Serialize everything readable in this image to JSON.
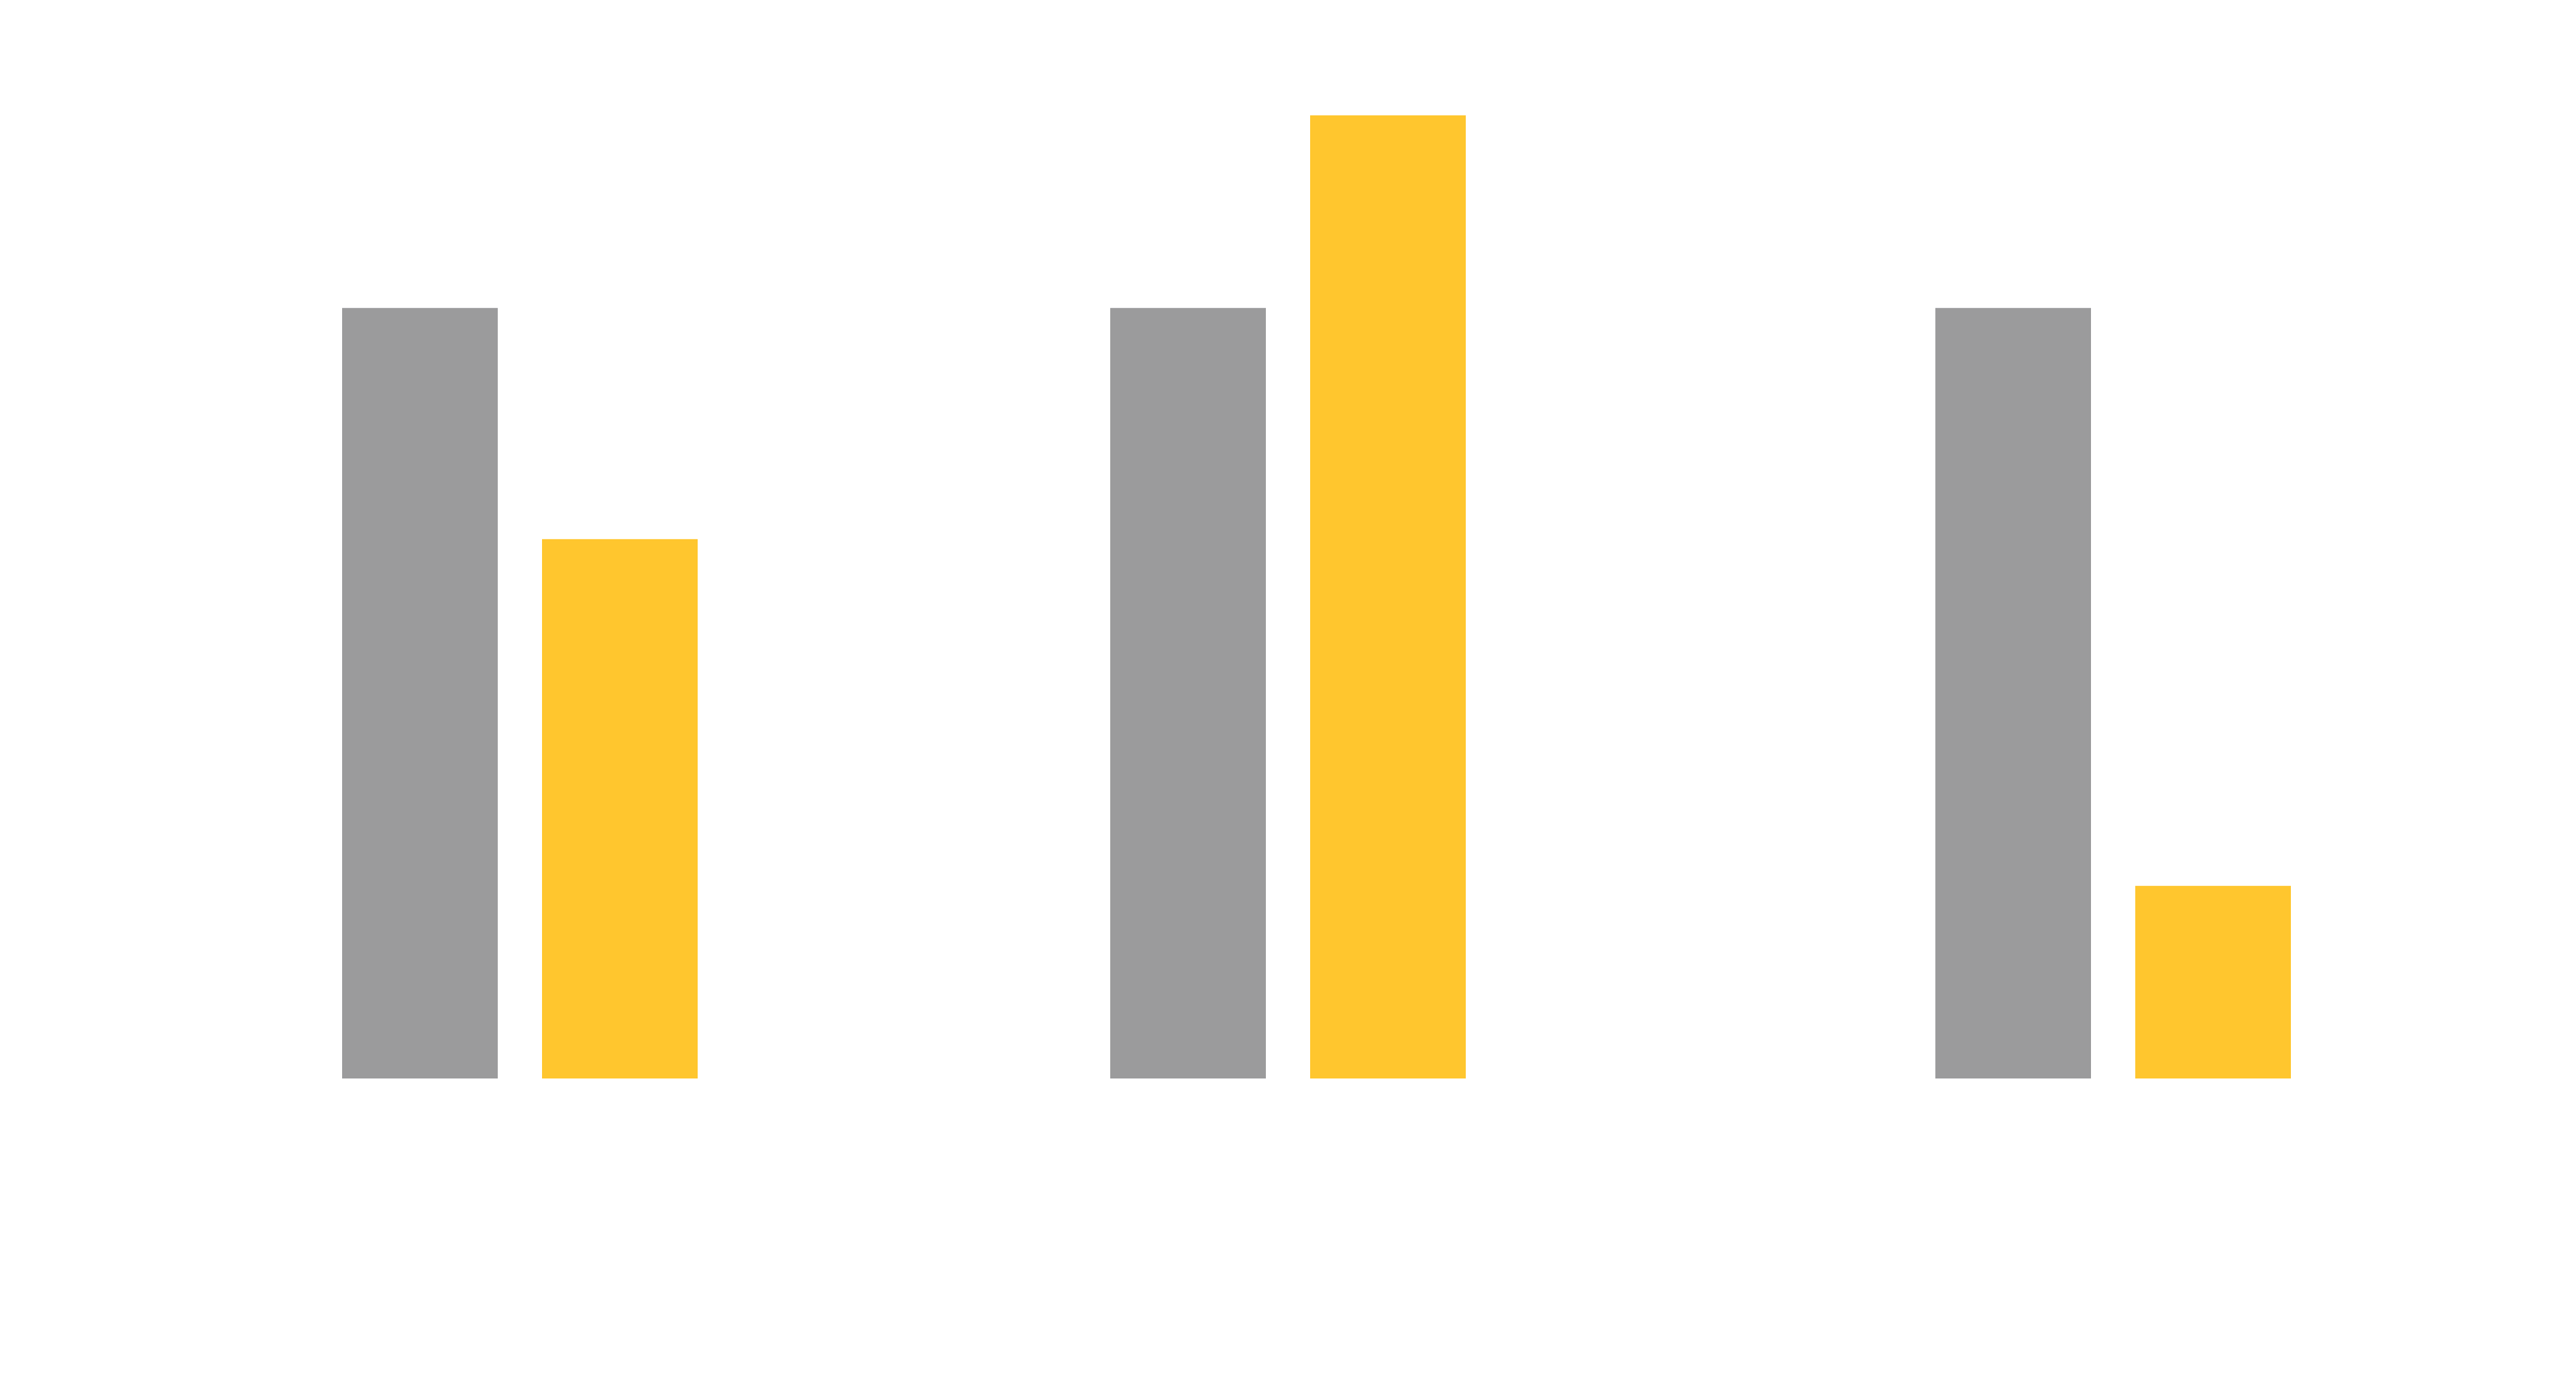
{
  "chart_data": {
    "type": "bar",
    "categories": [
      "",
      "",
      ""
    ],
    "series": [
      {
        "values": [
          100,
          100,
          100
        ],
        "color": "#9b9b9c"
      },
      {
        "values": [
          70,
          125,
          25
        ],
        "color": "#ffc62e"
      }
    ],
    "ylim": [
      0,
      125
    ],
    "grid": false,
    "legend": "none",
    "axes": "hidden"
  }
}
